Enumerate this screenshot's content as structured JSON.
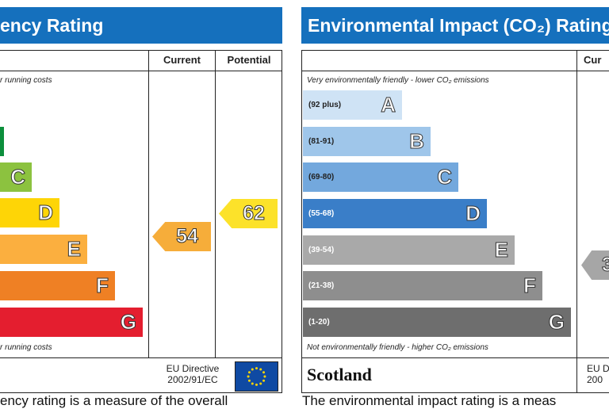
{
  "left_panel": {
    "title": "ency Rating",
    "col_current": "Current",
    "col_potential": "Potential",
    "top_note": "r running costs",
    "bottom_note": "r running costs",
    "bands": [
      {
        "letter": "",
        "color": "#0c8f3c"
      },
      {
        "letter": "C",
        "color": "#8cc23f"
      },
      {
        "letter": "D",
        "color": "#fed506"
      },
      {
        "letter": "E",
        "color": "#fbaf3f"
      },
      {
        "letter": "F",
        "color": "#ef8024"
      },
      {
        "letter": "G",
        "color": "#e41e2f"
      }
    ],
    "current_rating": "54",
    "current_color": "#f6ad3a",
    "potential_rating": "62",
    "potential_color": "#fce22a",
    "directive_line1": "EU Directive",
    "directive_line2": "2002/91/EC",
    "bottom_text": "ency rating is a measure of the overall"
  },
  "right_panel": {
    "title": "Environmental Impact (CO₂) Rating",
    "col_current": "Cur",
    "top_note": "Very environmentally friendly - lower CO₂ emissions",
    "bottom_note": "Not environmentally friendly - higher CO₂ emissions",
    "bands": [
      {
        "range": "(92 plus)",
        "letter": "A",
        "color": "#cfe3f5"
      },
      {
        "range": "(81-91)",
        "letter": "B",
        "color": "#9fc6ea"
      },
      {
        "range": "(69-80)",
        "letter": "C",
        "color": "#73a8dd"
      },
      {
        "range": "(55-68)",
        "letter": "D",
        "color": "#3a7ec8"
      },
      {
        "range": "(39-54)",
        "letter": "E",
        "color": "#a9a9a9"
      },
      {
        "range": "(21-38)",
        "letter": "F",
        "color": "#8e8e8e"
      },
      {
        "range": "(1-20)",
        "letter": "G",
        "color": "#6e6e6e"
      }
    ],
    "current_rating": "3",
    "current_color": "#a6a6a6",
    "region": "Scotland",
    "directive_line1": "EU D",
    "directive_line2": "200",
    "bottom_text": "The environmental impact rating is a meas"
  }
}
